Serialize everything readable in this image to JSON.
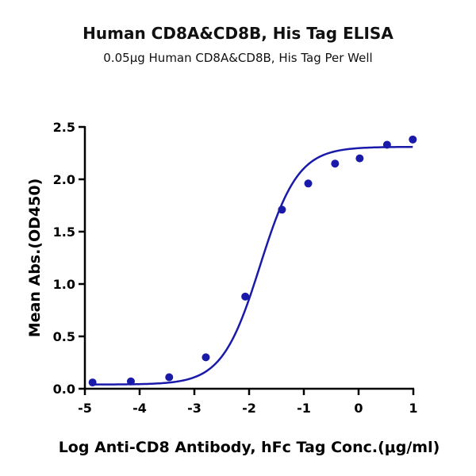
{
  "chart_data": {
    "type": "scatter",
    "title": "Human CD8A&CD8B, His Tag ELISA",
    "subtitle": "0.05μg Human CD8A&CD8B, His Tag Per Well",
    "xlabel": "Log Anti-CD8 Antibody, hFc Tag Conc.(μg/ml)",
    "ylabel": "Mean Abs.(OD450)",
    "xlim": [
      -5,
      1
    ],
    "ylim": [
      0,
      2.5
    ],
    "xticks": [
      "-5",
      "-4",
      "-3",
      "-2",
      "-1",
      "0",
      "1"
    ],
    "yticks": [
      "0.0",
      "0.5",
      "1.0",
      "1.5",
      "2.0",
      "2.5"
    ],
    "grid": false,
    "color": "#1a1aaa",
    "series": [
      {
        "x": [
          -4.86,
          -4.16,
          -3.46,
          -2.79,
          -2.07,
          -1.4,
          -0.92,
          -0.43,
          0.02,
          0.52,
          0.99
        ],
        "y": [
          0.06,
          0.07,
          0.11,
          0.3,
          0.88,
          1.71,
          1.96,
          2.15,
          2.2,
          2.33,
          2.38
        ]
      }
    ],
    "fit_curve": {
      "model": "4PL",
      "bottom": 0.04,
      "top": 2.31,
      "logEC50": -1.8,
      "hill": 1.25
    }
  }
}
